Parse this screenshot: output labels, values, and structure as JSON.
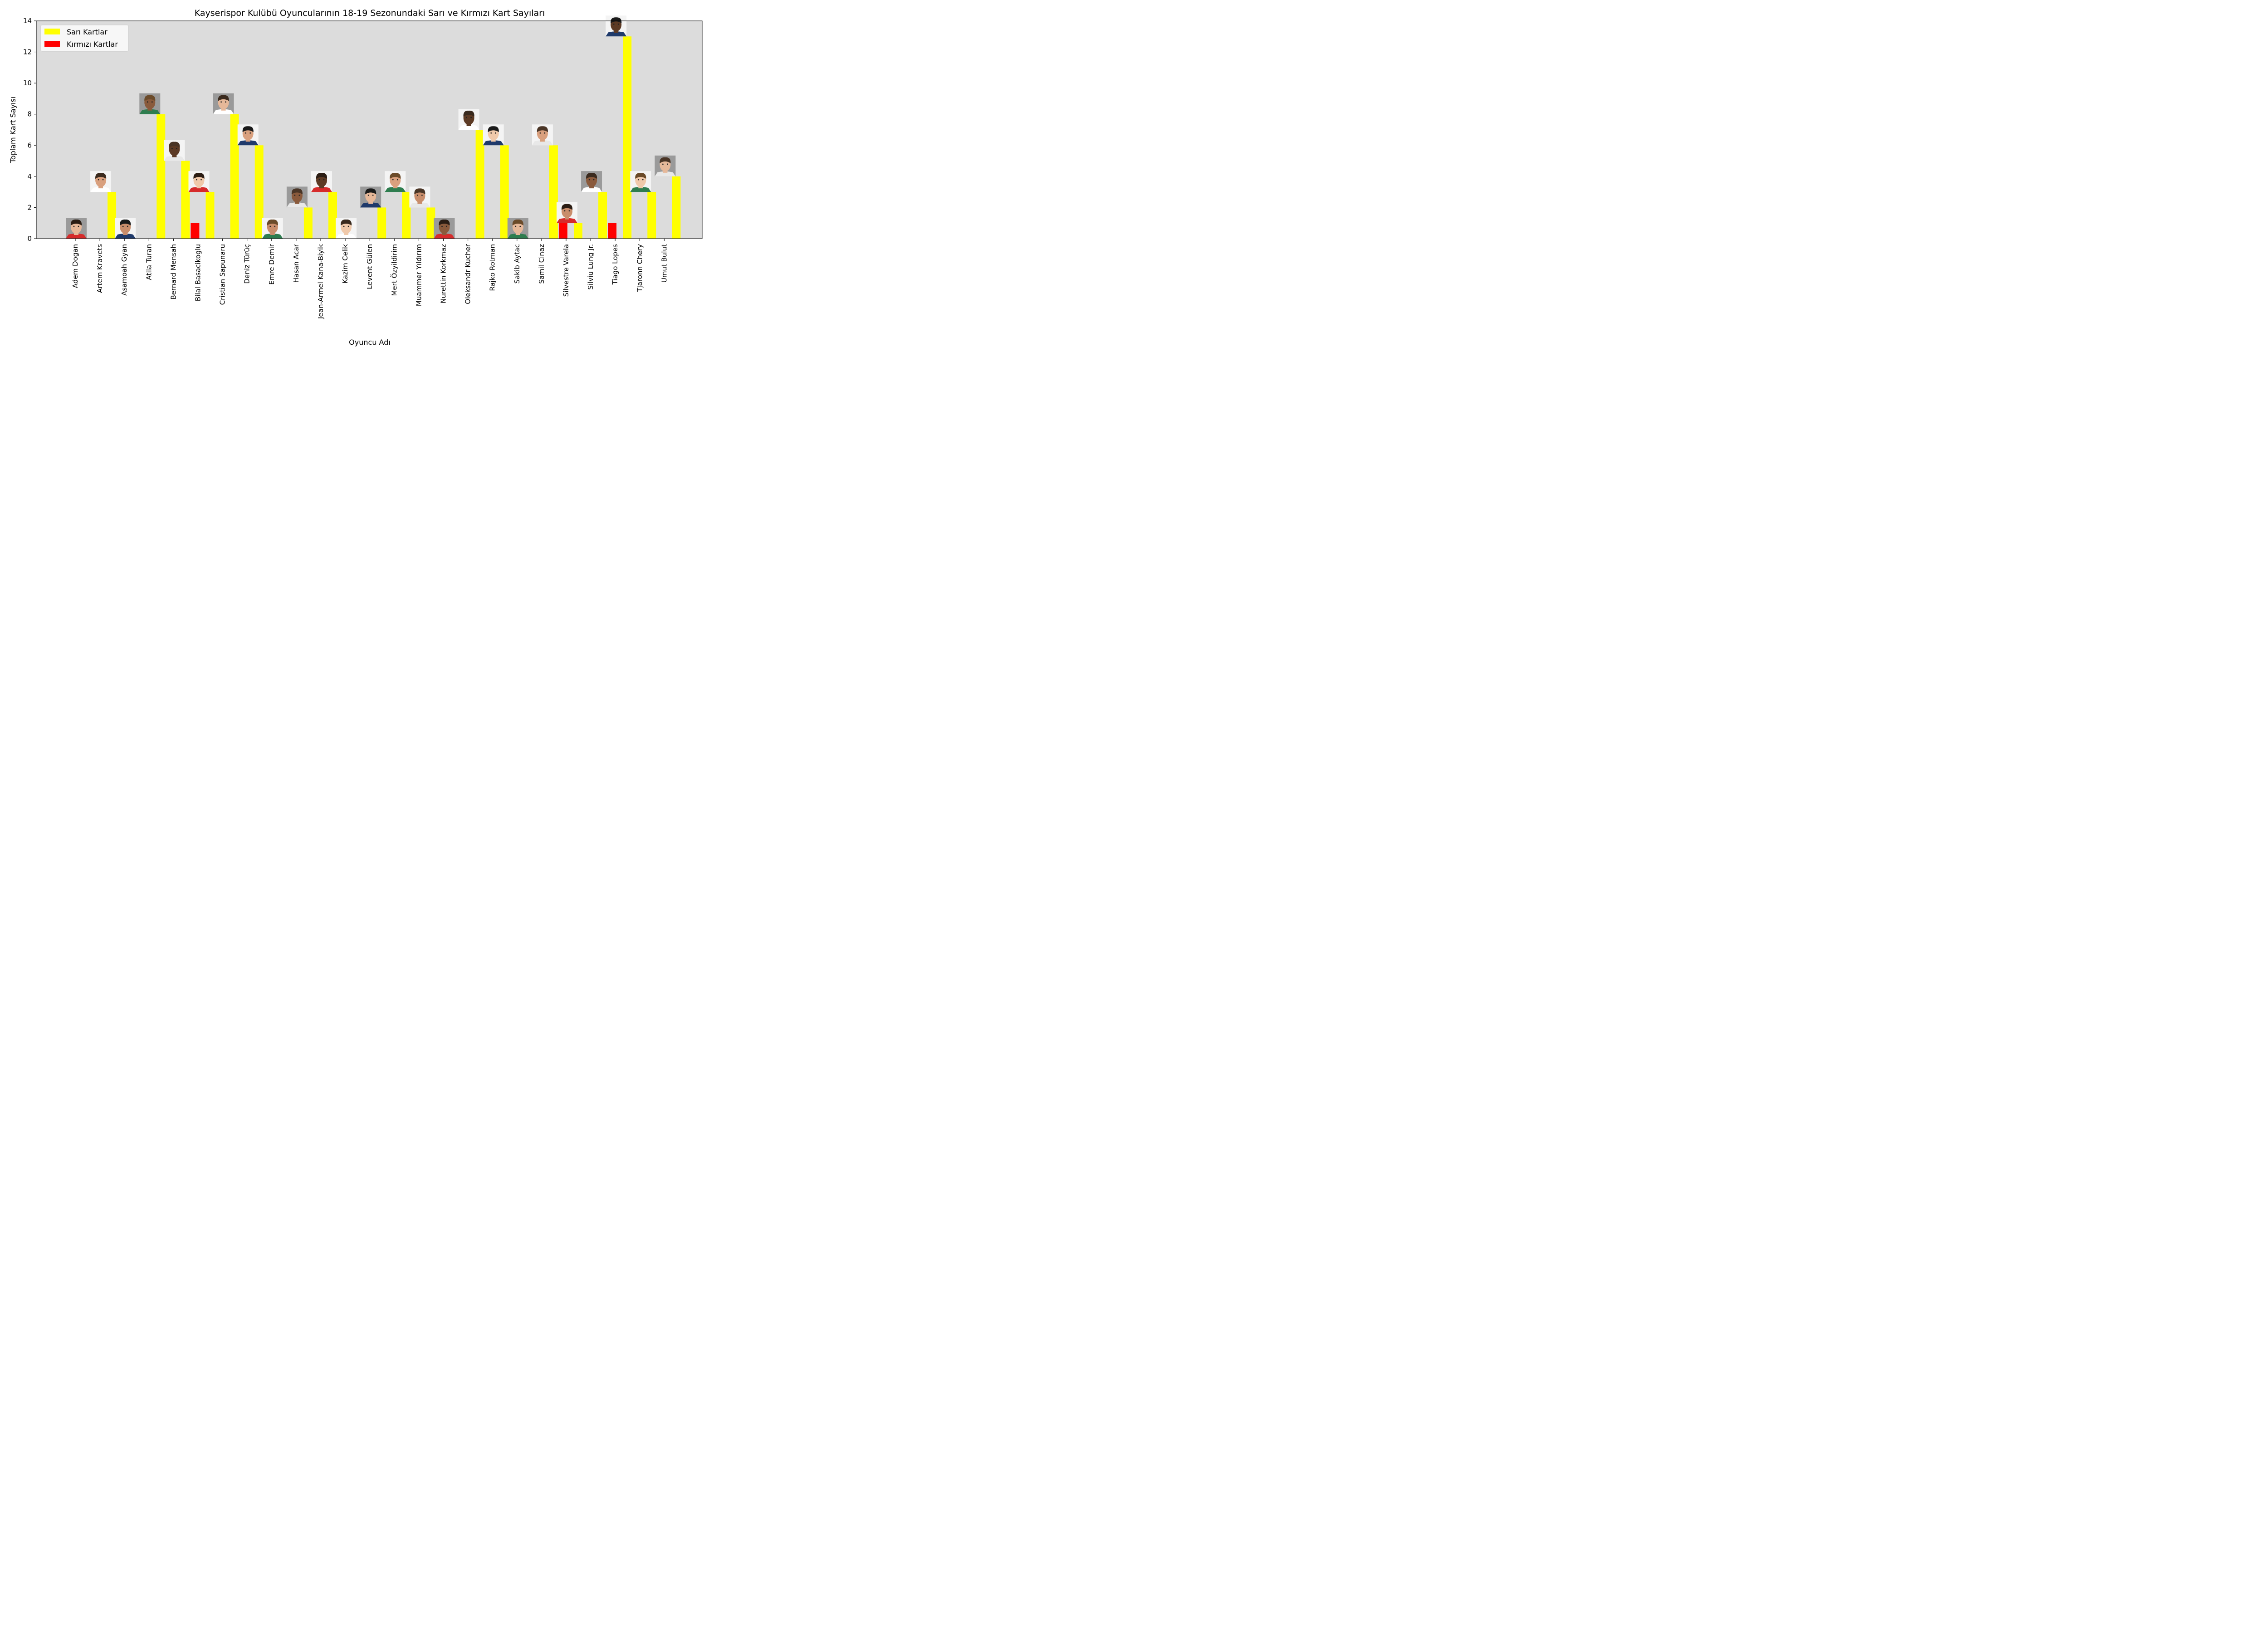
{
  "chart_data": {
    "type": "bar",
    "title": "Kayserispor Kulübü Oyuncularının 18-19 Sezonundaki Sarı ve Kırmızı Kart Sayıları",
    "xlabel": "Oyuncu Adı",
    "ylabel": "Toplam Kart Sayısı",
    "ylim": [
      0,
      14
    ],
    "yticks": [
      0,
      2,
      4,
      6,
      8,
      10,
      12,
      14
    ],
    "grid": false,
    "legend_position": "top-left",
    "plot_background": "#dcdcdc",
    "categories": [
      "Adem Dogan",
      "Artem Kravets",
      "Asamoah Gyan",
      "Atila Turan",
      "Bernard Mensah",
      "Bilal Basacikoglu",
      "Cristian Sapunaru",
      "Deniz Türüç",
      "Emre Demir",
      "Hasan Acar",
      "Jean-Armel Kana-Biyik",
      "Kazim Celik",
      "Levent Gülen",
      "Mert Özyildirim",
      "Muammer Yıldırım",
      "Nurettin Korkmaz",
      "Oleksandr Kucher",
      "Rajko Rotman",
      "Sakib Aytac",
      "Samil Cinaz",
      "Silvestre Varela",
      "Silviu Lung Jr.",
      "Tiago Lopes",
      "Tjaronn Chery",
      "Umut Bulut"
    ],
    "series": [
      {
        "name": "Sarı Kartlar",
        "color": "#ffff00",
        "values": [
          0,
          3,
          0,
          8,
          5,
          3,
          8,
          6,
          0,
          2,
          3,
          0,
          2,
          3,
          2,
          0,
          7,
          6,
          0,
          6,
          1,
          3,
          13,
          3,
          4
        ]
      },
      {
        "name": "Kırmızı Kartlar",
        "color": "#ff0000",
        "values": [
          0,
          0,
          0,
          0,
          1,
          0,
          0,
          0,
          0,
          0,
          0,
          0,
          0,
          0,
          0,
          0,
          0,
          1,
          0,
          1,
          0,
          1,
          0,
          0,
          0
        ]
      }
    ],
    "player_photo_icon": "player-face-icon"
  }
}
